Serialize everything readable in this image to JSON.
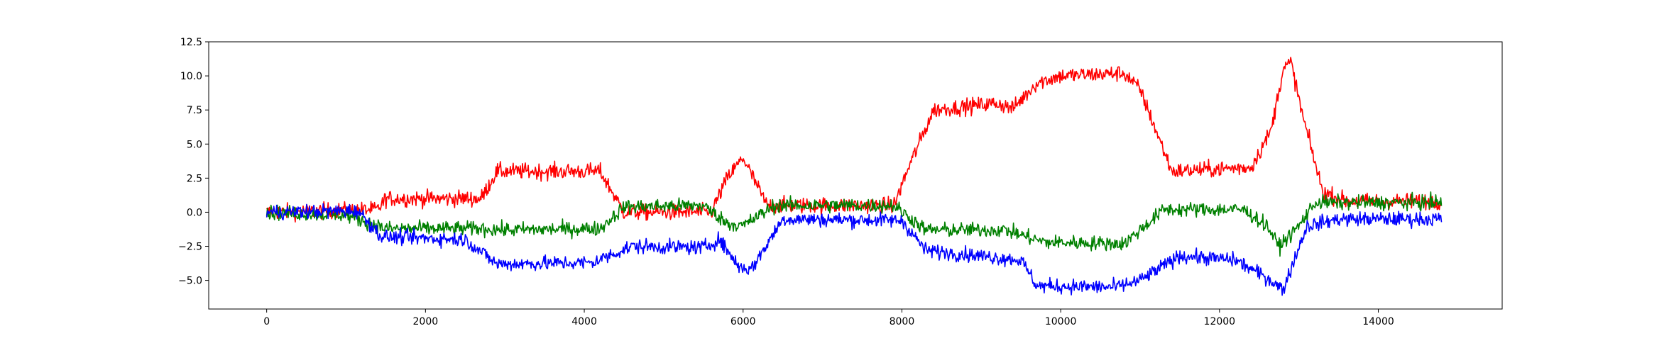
{
  "chart_data": {
    "type": "line",
    "title": "",
    "xlabel": "",
    "ylabel": "",
    "xlim": [
      -730,
      15560
    ],
    "ylim": [
      -7.1,
      12.5
    ],
    "grid": false,
    "legend": "none",
    "x_ticks": [
      {
        "value": 0,
        "label": "0"
      },
      {
        "value": 2000,
        "label": "2000"
      },
      {
        "value": 4000,
        "label": "4000"
      },
      {
        "value": 6000,
        "label": "6000"
      },
      {
        "value": 8000,
        "label": "8000"
      },
      {
        "value": 10000,
        "label": "10000"
      },
      {
        "value": 12000,
        "label": "12000"
      },
      {
        "value": 14000,
        "label": "14000"
      }
    ],
    "y_ticks": [
      {
        "value": -5.0,
        "label": "−5.0"
      },
      {
        "value": -2.5,
        "label": "−2.5"
      },
      {
        "value": 0.0,
        "label": "0.0"
      },
      {
        "value": 2.5,
        "label": "2.5"
      },
      {
        "value": 5.0,
        "label": "5.0"
      },
      {
        "value": 7.5,
        "label": "7.5"
      },
      {
        "value": 10.0,
        "label": "10.0"
      },
      {
        "value": 12.5,
        "label": "12.5"
      }
    ],
    "series": [
      {
        "color": "#ff0000",
        "noise": 0.42,
        "x": [
          0,
          1400,
          1500,
          2700,
          2900,
          4200,
          4500,
          5600,
          5800,
          6000,
          6300,
          7900,
          8100,
          8400,
          9200,
          9400,
          9700,
          10000,
          10800,
          11000,
          11400,
          12400,
          12650,
          12800,
          12900,
          13050,
          13300,
          13600,
          14800
        ],
        "values": [
          0.0,
          0.2,
          1.0,
          1.0,
          3.0,
          3.0,
          0.0,
          0.0,
          2.5,
          4.0,
          0.5,
          0.5,
          3.5,
          7.5,
          8.0,
          7.6,
          9.5,
          10.0,
          10.2,
          9.0,
          3.0,
          3.3,
          6.0,
          10.5,
          11.0,
          7.0,
          1.5,
          0.8,
          0.8
        ]
      },
      {
        "color": "#008000",
        "noise": 0.38,
        "x": [
          0,
          1000,
          1500,
          2700,
          3000,
          4200,
          4500,
          5500,
          5800,
          6000,
          6400,
          7900,
          8300,
          9300,
          9800,
          10800,
          11300,
          12300,
          12600,
          12750,
          13000,
          13200,
          14800
        ],
        "values": [
          0.0,
          -0.2,
          -1.2,
          -1.2,
          -1.3,
          -1.2,
          0.4,
          0.5,
          -0.8,
          -1.0,
          0.5,
          0.5,
          -1.3,
          -1.3,
          -2.2,
          -2.3,
          0.2,
          0.2,
          -1.0,
          -2.5,
          -1.0,
          0.7,
          0.7
        ]
      },
      {
        "color": "#0000ff",
        "noise": 0.38,
        "x": [
          0,
          1150,
          1450,
          2500,
          2900,
          4100,
          4600,
          5500,
          5700,
          5950,
          6100,
          6500,
          8000,
          8300,
          9500,
          9700,
          10700,
          11000,
          11500,
          12200,
          12650,
          12800,
          13100,
          13500,
          14800
        ],
        "values": [
          0.0,
          0.1,
          -1.8,
          -2.0,
          -3.8,
          -3.7,
          -2.5,
          -2.6,
          -2.0,
          -4.0,
          -4.2,
          -0.5,
          -0.6,
          -2.8,
          -3.5,
          -5.4,
          -5.5,
          -5.0,
          -3.2,
          -3.5,
          -5.0,
          -5.7,
          -1.0,
          -0.5,
          -0.5
        ]
      }
    ]
  }
}
